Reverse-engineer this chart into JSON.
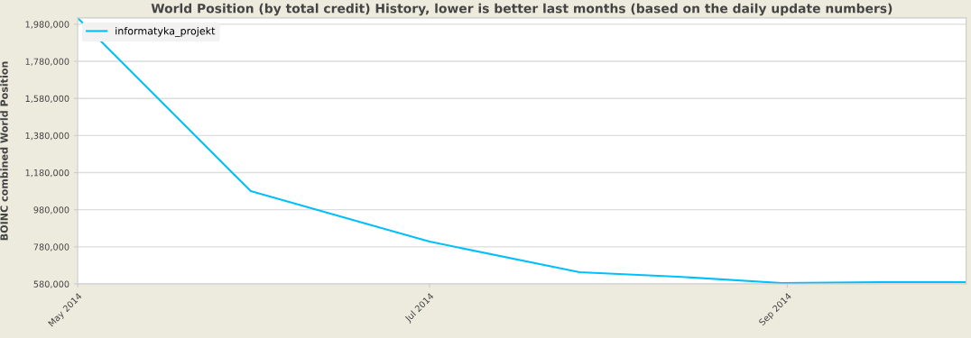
{
  "chart_data": {
    "type": "line",
    "title": "World Position (by total credit) History, lower is better last months (based on the daily update numbers)",
    "ylabel": "BOINC combined World Position",
    "x": [
      "2014-05-01",
      "2014-05-31",
      "2014-07-01",
      "2014-07-27",
      "2014-08-13",
      "2014-08-31",
      "2014-09-17",
      "2014-10-02"
    ],
    "series": [
      {
        "name": "informatyka_projekt",
        "color": "#00bfff",
        "values": [
          2014000,
          1080000,
          808000,
          643000,
          619000,
          585000,
          590000,
          590000
        ]
      }
    ],
    "xlim": [
      "2014-05-01",
      "2014-10-02"
    ],
    "xticks": [
      {
        "value": "2014-05-01",
        "label": "May 2014"
      },
      {
        "value": "2014-07-01",
        "label": "Jul 2014"
      },
      {
        "value": "2014-09-01",
        "label": "Sep 2014"
      }
    ],
    "ylim": [
      580000,
      2014000
    ],
    "yticks": [
      {
        "value": 580000,
        "label": "580,000"
      },
      {
        "value": 780000,
        "label": "780,000"
      },
      {
        "value": 980000,
        "label": "980,000"
      },
      {
        "value": 1180000,
        "label": "1,180,000"
      },
      {
        "value": 1380000,
        "label": "1,380,000"
      },
      {
        "value": 1580000,
        "label": "1,580,000"
      },
      {
        "value": 1780000,
        "label": "1,780,000"
      },
      {
        "value": 1980000,
        "label": "1,980,000"
      }
    ],
    "grid": "y",
    "legend": "top left",
    "marker": "none",
    "line_style": "solid"
  }
}
